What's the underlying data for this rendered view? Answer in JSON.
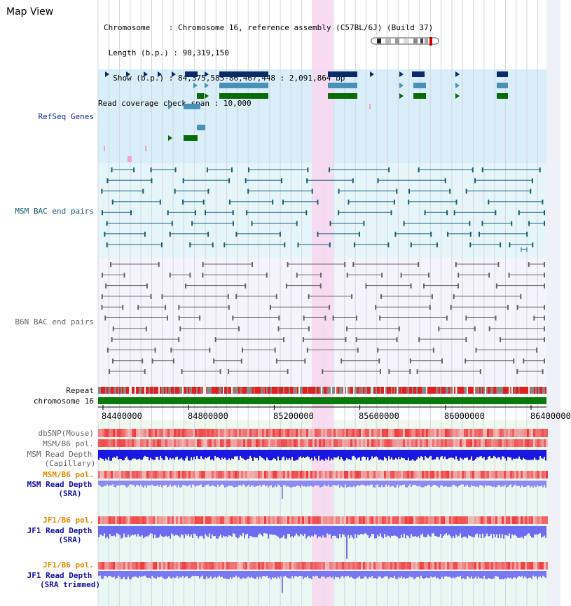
{
  "title": "Map View",
  "info": {
    "chromosome_label": "Chromosome",
    "chromosome_value": "Chromosome 16, reference assembly (C57BL/6J) (Build 37)",
    "length_label": "Length (b.p.)",
    "length_value": "98,319,150",
    "show_label": "Show (b.p.)",
    "show_value": "84,375,585-86,467,448 : 2,091,864 bp",
    "coverage_label": "Read coverage check span",
    "coverage_value": "10,000"
  },
  "tracks": {
    "refseq": "RefSeq Genes",
    "msm_bac": "MSM BAC end pairs",
    "b6n_bac": "B6N BAC end pairs",
    "repeat": "Repeat",
    "chromosome": "chromosome 16",
    "dbsnp": "dbSNP(Mouse)",
    "msm_b6_pol_1": "MSM/B6 pol.",
    "msm_depth_cap_1": "MSM Read Depth",
    "msm_depth_cap_2": "(Capillary)",
    "msm_b6_pol_2": "MSM/B6 pol.",
    "msm_depth_sra_1": "MSM Read Depth",
    "msm_depth_sra_2": "(SRA)",
    "jf1_pol_1": "JF1/B6 pol.",
    "jf1_depth_sra_1": "JF1 Read Depth",
    "jf1_depth_sra_2": "(SRA)",
    "jf1_pol_2": "JF1/B6 pol.",
    "jf1_depth_trim_1": "JF1 Read Depth",
    "jf1_depth_trim_2": "(SRA trimmed)"
  },
  "axis": {
    "ticks": [
      "84400000",
      "84800000",
      "85200000",
      "85600000",
      "86000000",
      "86400000"
    ]
  },
  "colors": {
    "refseq_bg": "#d8eef8",
    "msm_bg": "#e6f6f8",
    "b6n_bg": "#f4f4fa",
    "highlight": "#f8d8f0",
    "chromosome_bar": "#0a7a0a",
    "pol_red": "#e83030",
    "depth_blue": "#2020e0",
    "depth_light": "#8080f0"
  }
}
